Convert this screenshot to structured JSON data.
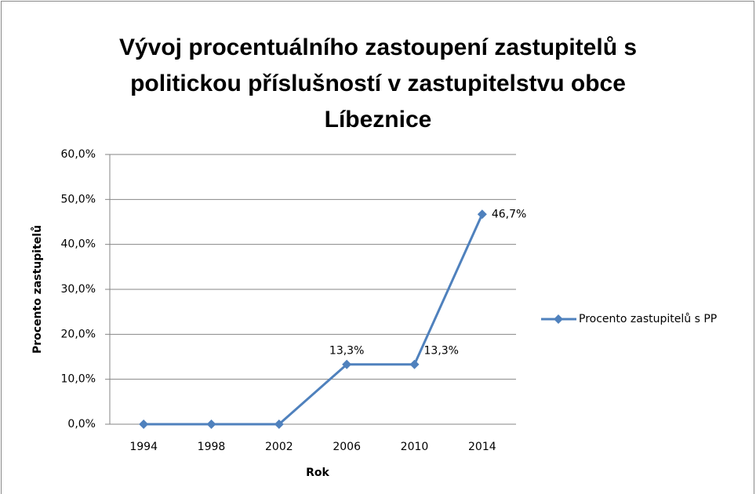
{
  "chart_data": {
    "type": "line",
    "title": "Vývoj procentuálního zastoupení zastupitelů s politickou příslušností v zastupitelstvu obce Líbeznice",
    "x_label": "Rok",
    "y_label": "Procento zastupitelů",
    "categories": [
      "1994",
      "1998",
      "2002",
      "2006",
      "2010",
      "2014"
    ],
    "series": [
      {
        "name": "Procento zastupitelů s PP",
        "color": "#4f81bd",
        "values": [
          0,
          0,
          0,
          13.3,
          13.3,
          46.7
        ],
        "value_labels": [
          null,
          null,
          null,
          "13,3%",
          "13,3%",
          "46,7%"
        ]
      }
    ],
    "ylim": [
      0,
      60
    ],
    "yticks": [
      {
        "value": 0,
        "label": "0,0%"
      },
      {
        "value": 10,
        "label": "10,0%"
      },
      {
        "value": 20,
        "label": "20,0%"
      },
      {
        "value": 30,
        "label": "30,0%"
      },
      {
        "value": 40,
        "label": "40,0%"
      },
      {
        "value": 50,
        "label": "50,0%"
      },
      {
        "value": 60,
        "label": "60,0%"
      }
    ],
    "grid": true,
    "legend": "right"
  }
}
